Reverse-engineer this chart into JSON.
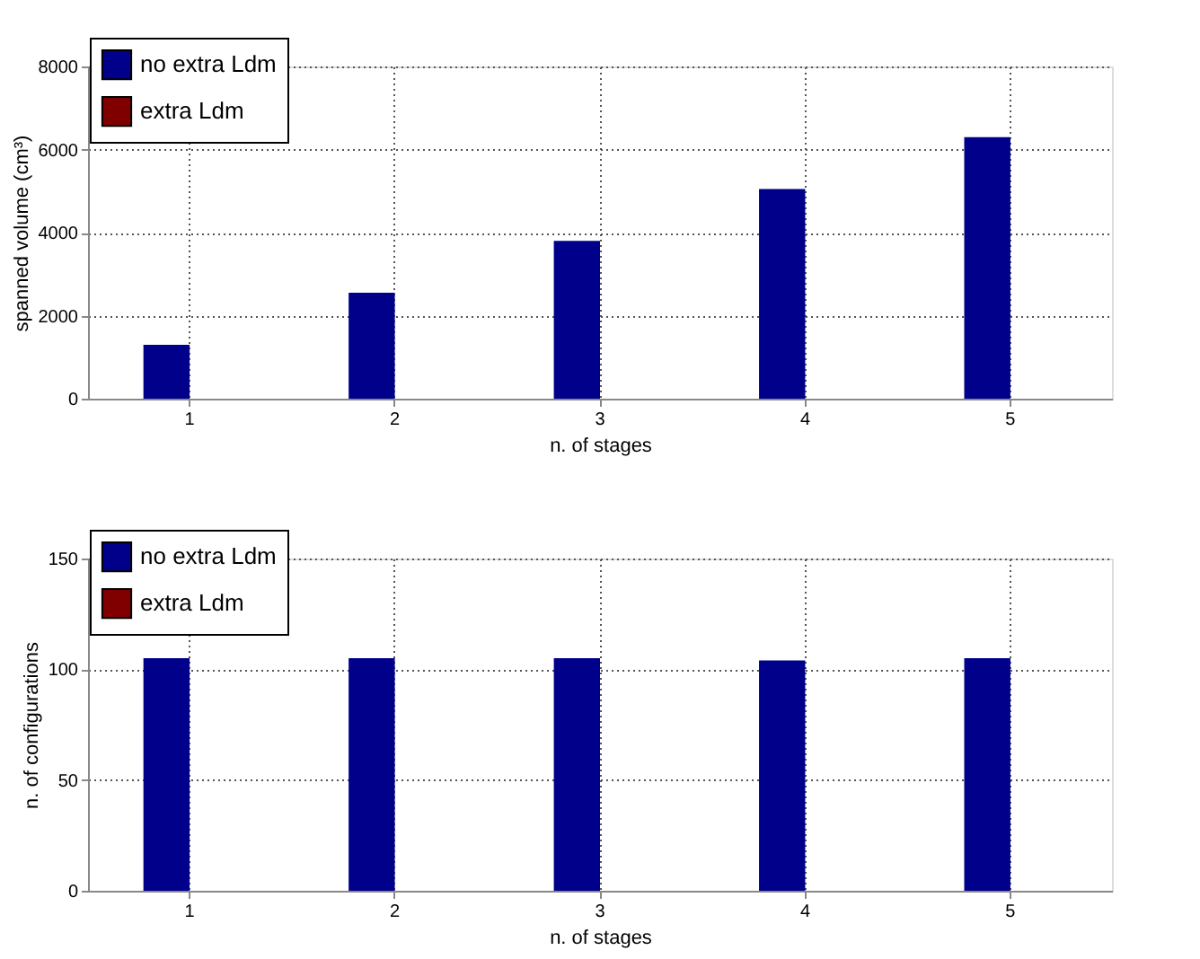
{
  "chart_data": [
    {
      "type": "bar",
      "categories": [
        "1",
        "2",
        "3",
        "4",
        "5"
      ],
      "xlabel": "n. of stages",
      "ylabel": "spanned volume (cm³)",
      "ylim": [
        0,
        8000
      ],
      "yticks": [
        0,
        2000,
        4000,
        6000,
        8000
      ],
      "grid": true,
      "legend": "top left",
      "series": [
        {
          "name": "no extra Ldm",
          "color": "#00008b",
          "values": [
            1300,
            2550,
            3800,
            5050,
            6300
          ]
        },
        {
          "name": "extra Ldm",
          "color": "#800000",
          "values": [
            0,
            0,
            0,
            0,
            0
          ]
        }
      ]
    },
    {
      "type": "bar",
      "categories": [
        "1",
        "2",
        "3",
        "4",
        "5"
      ],
      "xlabel": "n. of stages",
      "ylabel": "n. of configurations",
      "ylim": [
        0,
        150
      ],
      "yticks": [
        0,
        50,
        100,
        150
      ],
      "grid": true,
      "legend": "top left",
      "series": [
        {
          "name": "no extra Ldm",
          "color": "#00008b",
          "values": [
            105,
            105,
            105,
            104,
            105
          ]
        },
        {
          "name": "extra Ldm",
          "color": "#800000",
          "values": [
            0,
            0,
            0,
            0,
            0
          ]
        }
      ]
    }
  ]
}
